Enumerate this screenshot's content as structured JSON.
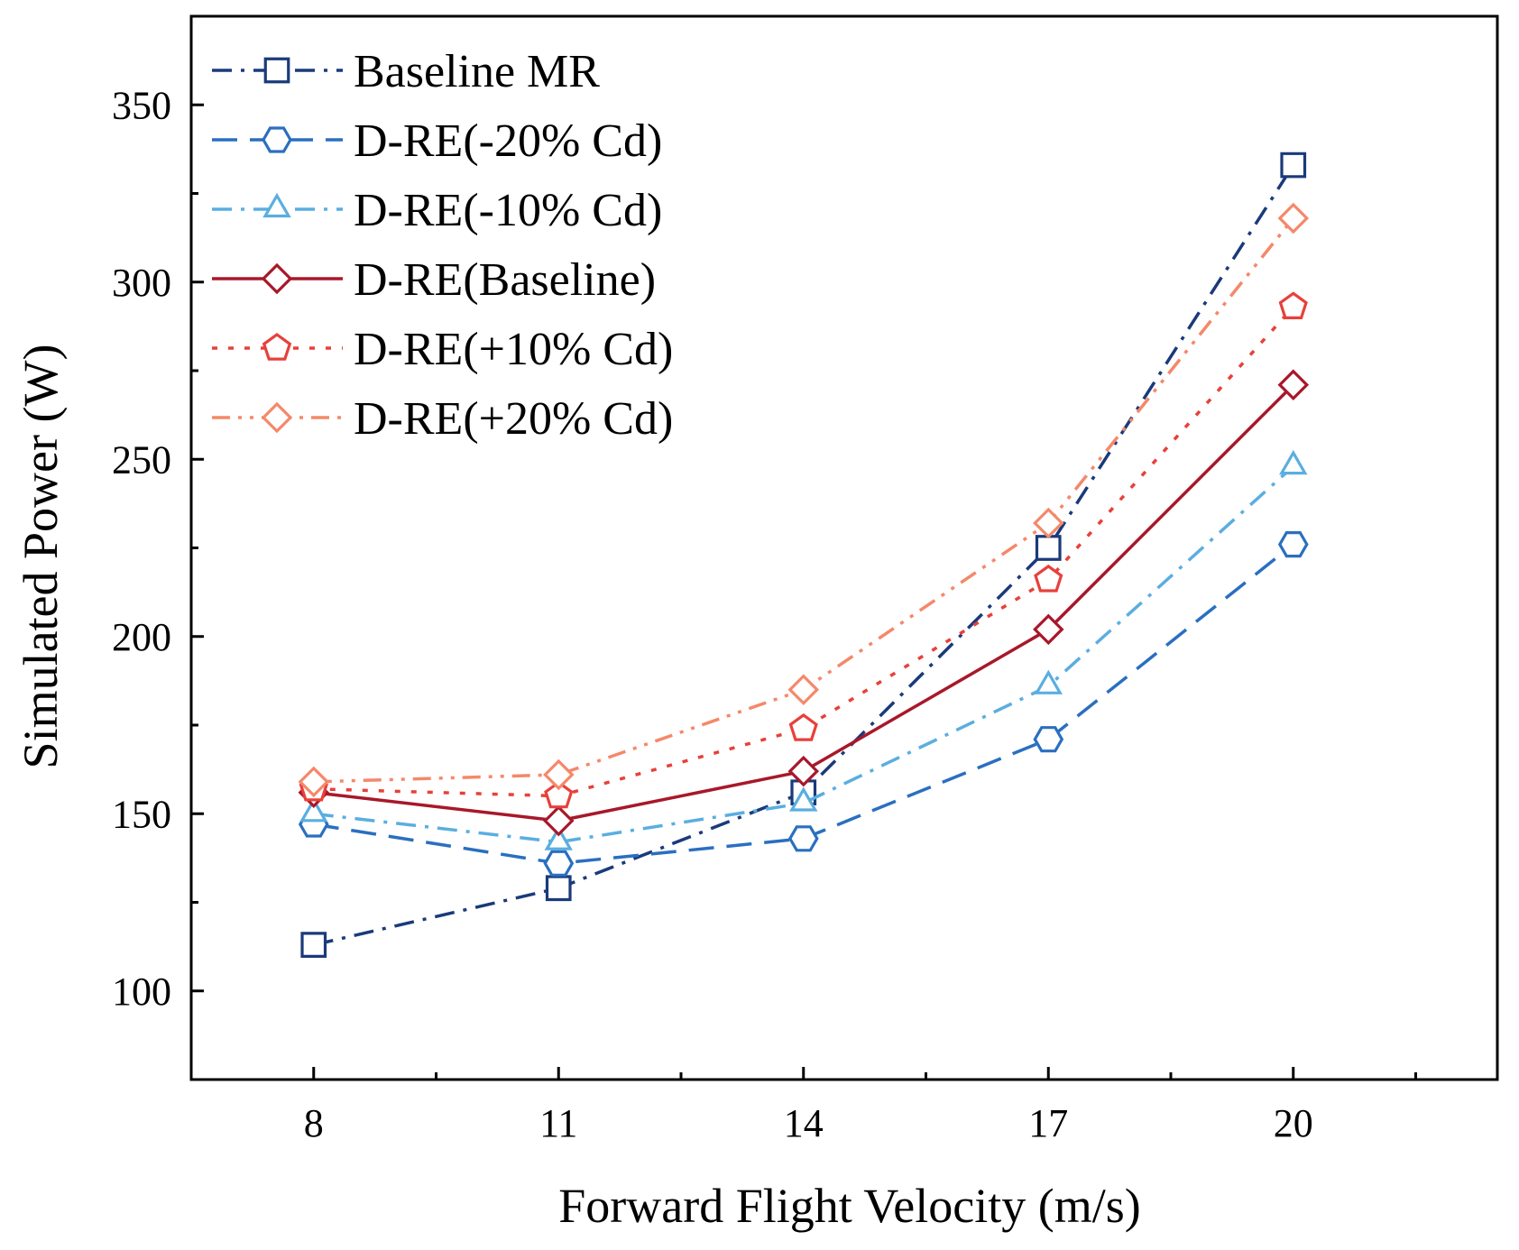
{
  "chart_data": {
    "type": "line",
    "title": "",
    "xlabel": "Forward Flight Velocity (m/s)",
    "ylabel": "Simulated Power (W)",
    "x": [
      8,
      11,
      14,
      17,
      20
    ],
    "xlim": [
      6.5,
      22.5
    ],
    "ylim": [
      75,
      375
    ],
    "xticks": [
      8,
      11,
      14,
      17,
      20
    ],
    "xticks_minor": [
      9.5,
      12.5,
      15.5,
      18.5,
      21.5
    ],
    "yticks": [
      100,
      150,
      200,
      250,
      300,
      350
    ],
    "grid": false,
    "legend_position": "top-left",
    "series": [
      {
        "name": "Baseline MR",
        "values": [
          113,
          129,
          156,
          225,
          333
        ],
        "color": "#1a3a7a",
        "marker": "square",
        "dash": "dashdot"
      },
      {
        "name": "D-RE(-20% Cd)",
        "values": [
          147,
          136,
          143,
          171,
          226
        ],
        "color": "#2a6fc0",
        "marker": "hexagon",
        "dash": "dash"
      },
      {
        "name": "D-RE(-10% Cd)",
        "values": [
          150,
          142,
          153,
          186,
          248
        ],
        "color": "#5aaee0",
        "marker": "triangle",
        "dash": "dashdot"
      },
      {
        "name": "D-RE(Baseline)",
        "values": [
          156,
          148,
          162,
          202,
          271
        ],
        "color": "#a8182a",
        "marker": "diamond",
        "dash": "solid"
      },
      {
        "name": "D-RE(+10% Cd)",
        "values": [
          157,
          155,
          174,
          216,
          293
        ],
        "color": "#e8403a",
        "marker": "pentagon",
        "dash": "dot"
      },
      {
        "name": "D-RE(+20% Cd)",
        "values": [
          159,
          161,
          185,
          232,
          318
        ],
        "color": "#f5886a",
        "marker": "diamond",
        "dash": "dashdotdot"
      }
    ]
  }
}
